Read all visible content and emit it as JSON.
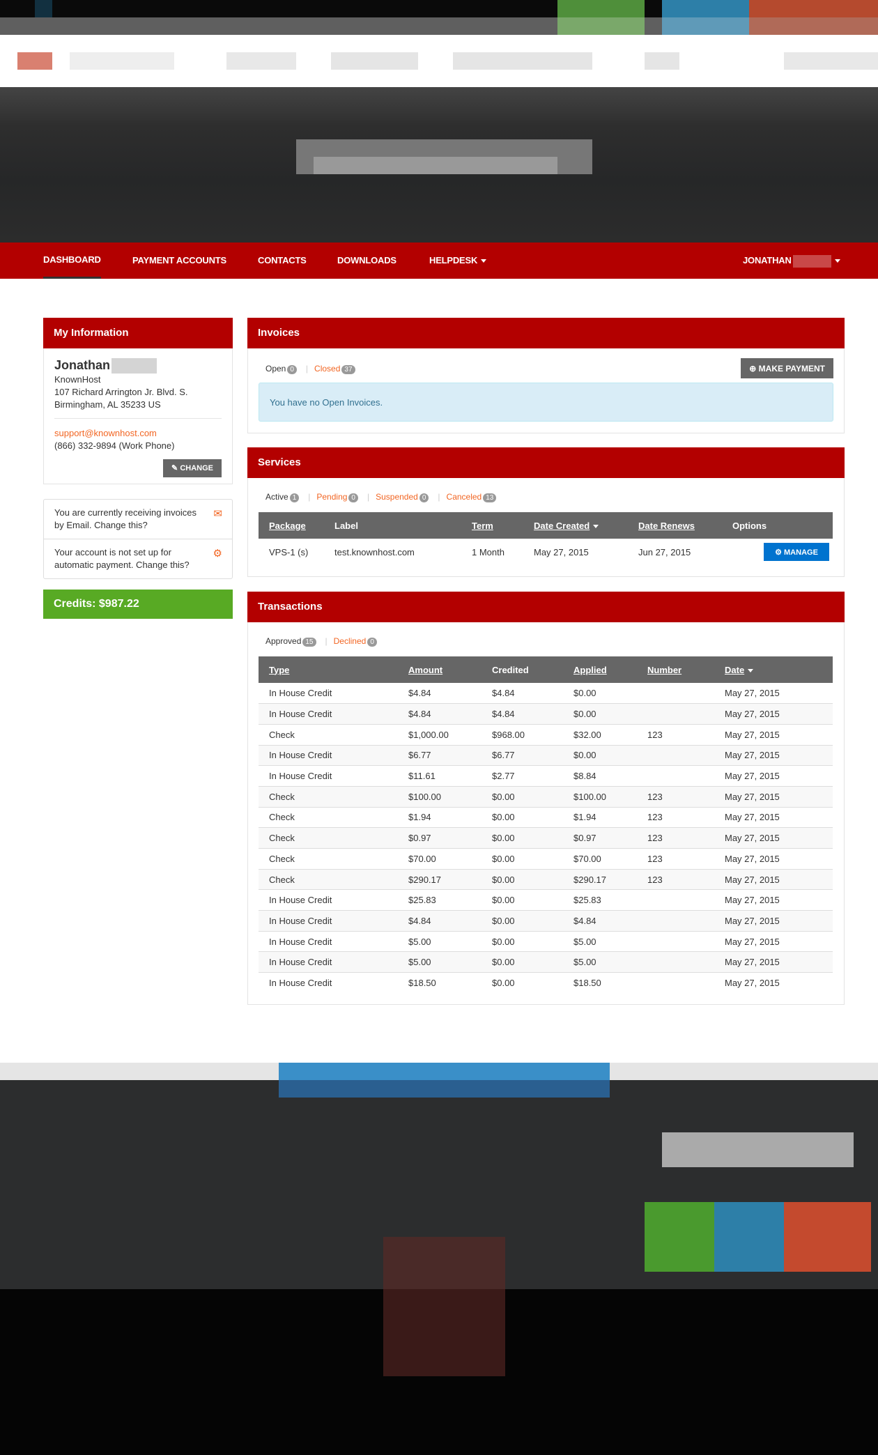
{
  "nav": {
    "items": [
      {
        "label": "DASHBOARD",
        "active": true
      },
      {
        "label": "PAYMENT ACCOUNTS"
      },
      {
        "label": "CONTACTS"
      },
      {
        "label": "DOWNLOADS"
      },
      {
        "label": "HELPDESK"
      }
    ],
    "user": "JONATHAN"
  },
  "colors": {
    "brand_red": "#b30000",
    "accent_orange": "#f26522",
    "credits_green": "#58aa24",
    "manage_blue": "#0073cf"
  },
  "my_info": {
    "title": "My Information",
    "name": "Jonathan",
    "company": "KnownHost",
    "address1": "107 Richard Arrington Jr. Blvd. S.",
    "address2": "Birmingham, AL 35233 US",
    "email": "support@knownhost.com",
    "phone": "(866) 332-9894 (Work Phone)",
    "change_label": "CHANGE"
  },
  "notices": [
    {
      "text": "You are currently receiving invoices by Email. Change this?",
      "icon": "envelope-icon"
    },
    {
      "text": "Your account is not set up for automatic payment. Change this?",
      "icon": "gear-icon"
    }
  ],
  "credits": "Credits: $987.22",
  "invoices": {
    "title": "Invoices",
    "filters": [
      {
        "label": "Open",
        "count": "0"
      },
      {
        "label": "Closed",
        "count": "37"
      }
    ],
    "make_payment_label": "MAKE PAYMENT",
    "empty_message": "You have no Open Invoices."
  },
  "services": {
    "title": "Services",
    "filters": [
      {
        "label": "Active",
        "count": "1"
      },
      {
        "label": "Pending",
        "count": "0"
      },
      {
        "label": "Suspended",
        "count": "0"
      },
      {
        "label": "Canceled",
        "count": "13"
      }
    ],
    "columns": [
      "Package",
      "Label",
      "Term",
      "Date Created",
      "Date Renews",
      "Options"
    ],
    "rows": [
      {
        "package": "VPS-1 (s)",
        "label": "test.knownhost.com",
        "term": "1 Month",
        "created": "May 27, 2015",
        "renews": "Jun 27, 2015"
      }
    ],
    "manage_label": "MANAGE"
  },
  "transactions": {
    "title": "Transactions",
    "filters": [
      {
        "label": "Approved",
        "count": "15"
      },
      {
        "label": "Declined",
        "count": "0"
      }
    ],
    "columns": [
      "Type",
      "Amount",
      "Credited",
      "Applied",
      "Number",
      "Date"
    ],
    "rows": [
      [
        "In House Credit",
        "$4.84",
        "$4.84",
        "$0.00",
        "",
        "May 27, 2015"
      ],
      [
        "In House Credit",
        "$4.84",
        "$4.84",
        "$0.00",
        "",
        "May 27, 2015"
      ],
      [
        "Check",
        "$1,000.00",
        "$968.00",
        "$32.00",
        "123",
        "May 27, 2015"
      ],
      [
        "In House Credit",
        "$6.77",
        "$6.77",
        "$0.00",
        "",
        "May 27, 2015"
      ],
      [
        "In House Credit",
        "$11.61",
        "$2.77",
        "$8.84",
        "",
        "May 27, 2015"
      ],
      [
        "Check",
        "$100.00",
        "$0.00",
        "$100.00",
        "123",
        "May 27, 2015"
      ],
      [
        "Check",
        "$1.94",
        "$0.00",
        "$1.94",
        "123",
        "May 27, 2015"
      ],
      [
        "Check",
        "$0.97",
        "$0.00",
        "$0.97",
        "123",
        "May 27, 2015"
      ],
      [
        "Check",
        "$70.00",
        "$0.00",
        "$70.00",
        "123",
        "May 27, 2015"
      ],
      [
        "Check",
        "$290.17",
        "$0.00",
        "$290.17",
        "123",
        "May 27, 2015"
      ],
      [
        "In House Credit",
        "$25.83",
        "$0.00",
        "$25.83",
        "",
        "May 27, 2015"
      ],
      [
        "In House Credit",
        "$4.84",
        "$0.00",
        "$4.84",
        "",
        "May 27, 2015"
      ],
      [
        "In House Credit",
        "$5.00",
        "$0.00",
        "$5.00",
        "",
        "May 27, 2015"
      ],
      [
        "In House Credit",
        "$5.00",
        "$0.00",
        "$5.00",
        "",
        "May 27, 2015"
      ],
      [
        "In House Credit",
        "$18.50",
        "$0.00",
        "$18.50",
        "",
        "May 27, 2015"
      ]
    ]
  }
}
